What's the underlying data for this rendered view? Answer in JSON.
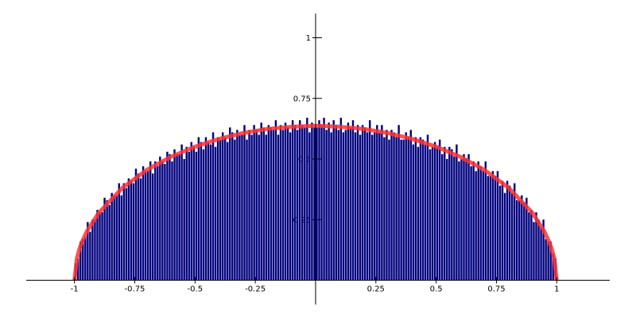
{
  "chart_data": {
    "type": "histogram",
    "bins": [
      -1,
      -0.99,
      -0.98,
      -0.97,
      -0.96,
      -0.95,
      -0.94,
      -0.93,
      -0.92,
      -0.91,
      -0.9,
      -0.89,
      -0.88,
      -0.87,
      -0.86,
      -0.85,
      -0.84,
      -0.83,
      -0.82,
      -0.81,
      -0.8,
      -0.79,
      -0.78,
      -0.77,
      -0.76,
      -0.75,
      -0.74,
      -0.73,
      -0.72,
      -0.71,
      -0.7,
      -0.69,
      -0.68,
      -0.67,
      -0.66,
      -0.65,
      -0.64,
      -0.63,
      -0.62,
      -0.61,
      -0.6,
      -0.59,
      -0.58,
      -0.57,
      -0.56,
      -0.55,
      -0.54,
      -0.53,
      -0.52,
      -0.51,
      -0.5,
      -0.49,
      -0.48,
      -0.47,
      -0.46,
      -0.45,
      -0.44,
      -0.43,
      -0.42,
      -0.41,
      -0.4,
      -0.39,
      -0.38,
      -0.37,
      -0.36,
      -0.35,
      -0.34,
      -0.33,
      -0.32,
      -0.31,
      -0.3,
      -0.29,
      -0.28,
      -0.27,
      -0.26,
      -0.25,
      -0.24,
      -0.23,
      -0.22,
      -0.21,
      -0.2,
      -0.19,
      -0.18,
      -0.17,
      -0.16,
      -0.15,
      -0.14,
      -0.13,
      -0.12,
      -0.11,
      -0.1,
      -0.09,
      -0.08,
      -0.07,
      -0.06,
      -0.05,
      -0.04,
      -0.03,
      -0.02,
      -0.01,
      0,
      0.01,
      0.02,
      0.03,
      0.04,
      0.05,
      0.06,
      0.07,
      0.08,
      0.09,
      0.1,
      0.11,
      0.12,
      0.13,
      0.14,
      0.15,
      0.16,
      0.17,
      0.18,
      0.19,
      0.2,
      0.21,
      0.22,
      0.23,
      0.24,
      0.25,
      0.26,
      0.27,
      0.28,
      0.29,
      0.3,
      0.31,
      0.32,
      0.33,
      0.34,
      0.35,
      0.36,
      0.37,
      0.38,
      0.39,
      0.4,
      0.41,
      0.42,
      0.43,
      0.44,
      0.45,
      0.46,
      0.47,
      0.48,
      0.49,
      0.5,
      0.51,
      0.52,
      0.53,
      0.54,
      0.55,
      0.56,
      0.57,
      0.58,
      0.59,
      0.6,
      0.61,
      0.62,
      0.63,
      0.64,
      0.65,
      0.66,
      0.67,
      0.68,
      0.69,
      0.7,
      0.71,
      0.72,
      0.73,
      0.74,
      0.75,
      0.76,
      0.77,
      0.78,
      0.79,
      0.8,
      0.81,
      0.82,
      0.83,
      0.84,
      0.85,
      0.86,
      0.87,
      0.88,
      0.89,
      0.9,
      0.91,
      0.92,
      0.93,
      0.94,
      0.95,
      0.96,
      0.97,
      0.98,
      0.99,
      1
    ],
    "values": [
      0.07,
      0.09,
      0.16,
      0.17,
      0.18,
      0.24,
      0.2,
      0.25,
      0.25,
      0.29,
      0.28,
      0.28,
      0.34,
      0.33,
      0.31,
      0.36,
      0.35,
      0.35,
      0.4,
      0.35,
      0.4,
      0.38,
      0.42,
      0.41,
      0.4,
      0.46,
      0.44,
      0.42,
      0.47,
      0.45,
      0.45,
      0.49,
      0.44,
      0.49,
      0.47,
      0.51,
      0.49,
      0.48,
      0.53,
      0.52,
      0.49,
      0.54,
      0.52,
      0.52,
      0.56,
      0.5,
      0.55,
      0.53,
      0.57,
      0.55,
      0.53,
      0.59,
      0.57,
      0.54,
      0.59,
      0.57,
      0.56,
      0.61,
      0.55,
      0.59,
      0.58,
      0.61,
      0.59,
      0.57,
      0.63,
      0.61,
      0.58,
      0.62,
      0.6,
      0.6,
      0.64,
      0.58,
      0.62,
      0.6,
      0.64,
      0.62,
      0.6,
      0.65,
      0.63,
      0.6,
      0.64,
      0.63,
      0.62,
      0.66,
      0.6,
      0.64,
      0.62,
      0.65,
      0.63,
      0.61,
      0.66,
      0.64,
      0.62,
      0.66,
      0.64,
      0.63,
      0.67,
      0.61,
      0.65,
      0.63,
      0.63,
      0.66,
      0.64,
      0.67,
      0.62,
      0.65,
      0.61,
      0.66,
      0.64,
      0.62,
      0.67,
      0.61,
      0.62,
      0.65,
      0.63,
      0.66,
      0.61,
      0.64,
      0.6,
      0.64,
      0.63,
      0.61,
      0.66,
      0.6,
      0.61,
      0.64,
      0.61,
      0.64,
      0.59,
      0.62,
      0.58,
      0.62,
      0.61,
      0.59,
      0.64,
      0.58,
      0.58,
      0.61,
      0.59,
      0.62,
      0.56,
      0.59,
      0.55,
      0.59,
      0.58,
      0.56,
      0.6,
      0.54,
      0.55,
      0.57,
      0.55,
      0.58,
      0.52,
      0.55,
      0.5,
      0.55,
      0.54,
      0.51,
      0.56,
      0.49,
      0.5,
      0.52,
      0.5,
      0.52,
      0.47,
      0.49,
      0.45,
      0.49,
      0.47,
      0.45,
      0.49,
      0.43,
      0.43,
      0.45,
      0.43,
      0.45,
      0.39,
      0.41,
      0.36,
      0.41,
      0.39,
      0.36,
      0.4,
      0.33,
      0.33,
      0.35,
      0.32,
      0.34,
      0.28,
      0.29,
      0.24,
      0.28,
      0.25,
      0.22,
      0.25,
      0.17,
      0.16,
      0.16,
      0.11,
      0.09
    ],
    "color": "#00007f",
    "curve": {
      "type": "line",
      "color": "#ff3333",
      "x": [
        -1,
        -0.99,
        -0.98,
        -0.97,
        -0.95,
        -0.9,
        -0.8,
        -0.7,
        -0.6,
        -0.5,
        -0.4,
        -0.3,
        -0.2,
        -0.1,
        0,
        0.1,
        0.2,
        0.3,
        0.4,
        0.5,
        0.6,
        0.7,
        0.8,
        0.9,
        0.95,
        0.97,
        0.98,
        0.99,
        1
      ],
      "values": [
        0,
        0.09,
        0.127,
        0.155,
        0.199,
        0.277,
        0.382,
        0.455,
        0.509,
        0.551,
        0.583,
        0.607,
        0.624,
        0.633,
        0.637,
        0.633,
        0.624,
        0.607,
        0.583,
        0.551,
        0.509,
        0.455,
        0.382,
        0.277,
        0.199,
        0.155,
        0.127,
        0.09,
        0
      ]
    },
    "xlim": [
      -1.2,
      1.22
    ],
    "ylim": [
      -0.1,
      1.1
    ],
    "xticks": [
      -1,
      -0.75,
      -0.5,
      -0.25,
      0.25,
      0.5,
      0.75,
      1
    ],
    "yticks": [
      0.25,
      0.5,
      0.75,
      1
    ]
  }
}
